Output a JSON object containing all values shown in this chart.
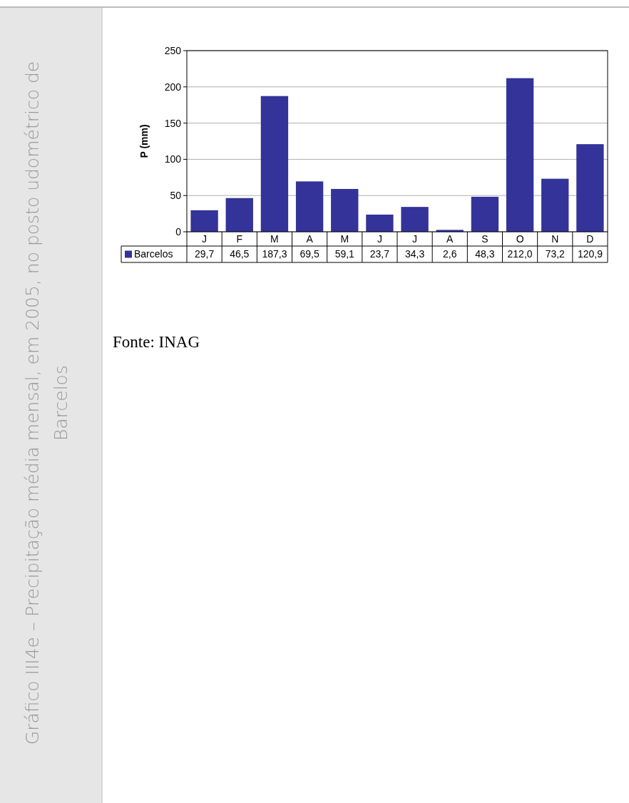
{
  "chart_data": {
    "type": "bar",
    "title": "Gráfico III4e – Precipitação  média mensal, em 2005, no posto udométrico de Barcelos",
    "ylabel": "P (mm)",
    "categories": [
      "J",
      "F",
      "M",
      "A",
      "M",
      "J",
      "J",
      "A",
      "S",
      "O",
      "N",
      "D"
    ],
    "series": [
      {
        "name": "Barcelos",
        "color": "#333399",
        "values": [
          29.7,
          46.5,
          187.3,
          69.5,
          59.1,
          23.7,
          34.3,
          2.6,
          48.3,
          212.0,
          73.2,
          120.9
        ],
        "value_labels": [
          "29,7",
          "46,5",
          "187,3",
          "69,5",
          "59,1",
          "23,7",
          "34,3",
          "2,6",
          "48,3",
          "212,0",
          "73,2",
          "120,9"
        ]
      }
    ],
    "ylim": [
      0,
      250
    ],
    "yticks": [
      0,
      50,
      100,
      150,
      200,
      250
    ],
    "grid": "y",
    "legend": "bottom",
    "annotations": [
      "Fonte: INAG"
    ]
  }
}
